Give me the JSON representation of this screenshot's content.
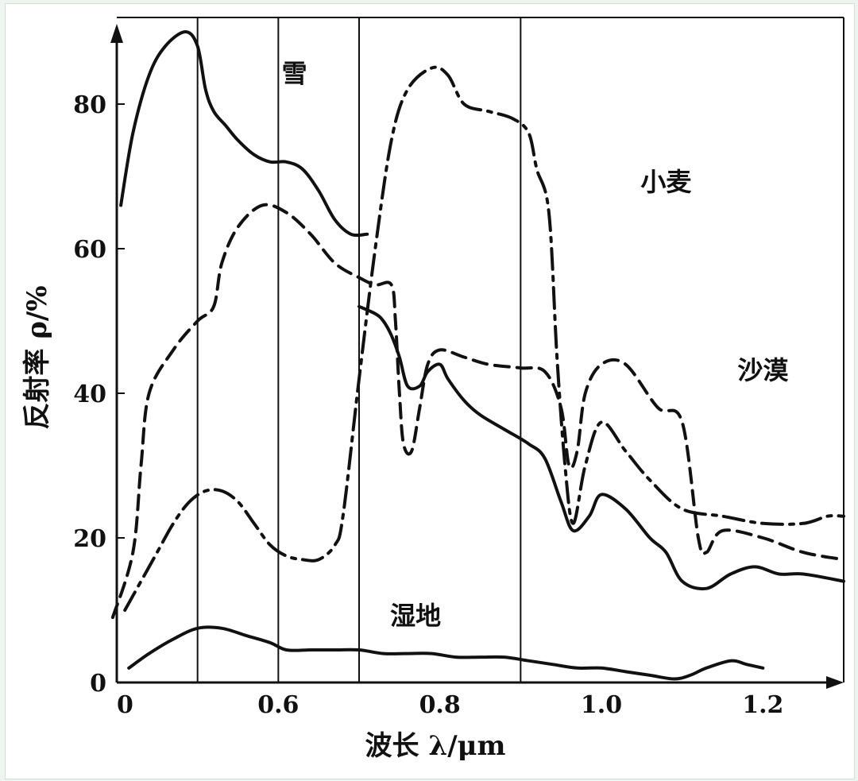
{
  "chart_data": {
    "type": "line",
    "xlabel": "波长 λ/μm",
    "ylabel": "反射率 ρ/%",
    "x_ticks": [
      "0",
      "0.6",
      "0.8",
      "1.0",
      "1.2"
    ],
    "y_ticks": [
      "0",
      "20",
      "40",
      "60",
      "80"
    ],
    "xlim": [
      0.4,
      1.3
    ],
    "ylim": [
      0,
      90
    ],
    "grid": "vertical lines at 0.5, 0.6, 0.7, 0.9",
    "legend": "inline labels",
    "series": [
      {
        "name": "雪",
        "style": "solid",
        "points": [
          [
            0.405,
            66
          ],
          [
            0.42,
            76
          ],
          [
            0.44,
            84
          ],
          [
            0.46,
            88
          ],
          [
            0.485,
            90
          ],
          [
            0.5,
            88
          ],
          [
            0.51,
            82
          ],
          [
            0.52,
            79
          ],
          [
            0.535,
            77
          ],
          [
            0.55,
            75
          ],
          [
            0.57,
            73
          ],
          [
            0.59,
            72
          ],
          [
            0.61,
            72
          ],
          [
            0.63,
            71
          ],
          [
            0.65,
            68
          ],
          [
            0.67,
            64
          ],
          [
            0.69,
            62
          ],
          [
            0.71,
            62
          ]
        ]
      },
      {
        "name": "小麦",
        "style": "dash-dot",
        "points": [
          [
            0.41,
            10
          ],
          [
            0.43,
            14
          ],
          [
            0.45,
            18
          ],
          [
            0.47,
            22
          ],
          [
            0.49,
            25
          ],
          [
            0.51,
            26.5
          ],
          [
            0.53,
            26.5
          ],
          [
            0.55,
            25
          ],
          [
            0.57,
            22
          ],
          [
            0.59,
            19
          ],
          [
            0.61,
            17.5
          ],
          [
            0.63,
            17
          ],
          [
            0.65,
            17
          ],
          [
            0.67,
            19
          ],
          [
            0.68,
            23
          ],
          [
            0.7,
            42
          ],
          [
            0.72,
            60
          ],
          [
            0.74,
            75
          ],
          [
            0.76,
            82
          ],
          [
            0.79,
            85
          ],
          [
            0.81,
            84
          ],
          [
            0.83,
            80
          ],
          [
            0.86,
            79
          ],
          [
            0.89,
            78
          ],
          [
            0.91,
            76
          ],
          [
            0.92,
            71
          ],
          [
            0.935,
            65
          ],
          [
            0.945,
            45
          ],
          [
            0.955,
            30
          ],
          [
            0.965,
            22
          ],
          [
            0.98,
            30
          ],
          [
            1.0,
            36
          ],
          [
            1.03,
            32
          ],
          [
            1.06,
            28
          ],
          [
            1.1,
            24
          ],
          [
            1.15,
            23
          ],
          [
            1.2,
            22
          ],
          [
            1.25,
            22
          ],
          [
            1.28,
            23
          ],
          [
            1.3,
            23
          ]
        ]
      },
      {
        "name": "沙漠",
        "style": "dashed",
        "points": [
          [
            0.395,
            9
          ],
          [
            0.42,
            18
          ],
          [
            0.43,
            30
          ],
          [
            0.44,
            40
          ],
          [
            0.47,
            46
          ],
          [
            0.5,
            50
          ],
          [
            0.52,
            52
          ],
          [
            0.53,
            58
          ],
          [
            0.55,
            63
          ],
          [
            0.58,
            66
          ],
          [
            0.61,
            65
          ],
          [
            0.64,
            62
          ],
          [
            0.67,
            58
          ],
          [
            0.7,
            56
          ],
          [
            0.72,
            55
          ],
          [
            0.74,
            55
          ],
          [
            0.745,
            50
          ],
          [
            0.75,
            40
          ],
          [
            0.755,
            33
          ],
          [
            0.765,
            32
          ],
          [
            0.775,
            38
          ],
          [
            0.785,
            44
          ],
          [
            0.8,
            46
          ],
          [
            0.83,
            45
          ],
          [
            0.86,
            44
          ],
          [
            0.9,
            43.5
          ],
          [
            0.93,
            43
          ],
          [
            0.95,
            38
          ],
          [
            0.96,
            30
          ],
          [
            0.97,
            32
          ],
          [
            0.98,
            40
          ],
          [
            1.0,
            44
          ],
          [
            1.03,
            44
          ],
          [
            1.07,
            38
          ],
          [
            1.1,
            36
          ],
          [
            1.12,
            20
          ],
          [
            1.13,
            18
          ],
          [
            1.15,
            21
          ],
          [
            1.2,
            20
          ],
          [
            1.25,
            18
          ],
          [
            1.3,
            17
          ]
        ]
      },
      {
        "name": "湿地",
        "style": "solid",
        "points": [
          [
            0.415,
            2
          ],
          [
            0.44,
            4
          ],
          [
            0.47,
            6
          ],
          [
            0.5,
            7.5
          ],
          [
            0.53,
            7.5
          ],
          [
            0.56,
            6.5
          ],
          [
            0.59,
            5.5
          ],
          [
            0.61,
            4.5
          ],
          [
            0.64,
            4.5
          ],
          [
            0.67,
            4.5
          ],
          [
            0.7,
            4.5
          ],
          [
            0.73,
            4
          ],
          [
            0.76,
            4
          ],
          [
            0.79,
            4
          ],
          [
            0.82,
            3.5
          ],
          [
            0.85,
            3.5
          ],
          [
            0.88,
            3.5
          ],
          [
            0.91,
            3
          ],
          [
            0.94,
            2.5
          ],
          [
            0.97,
            2
          ],
          [
            1.0,
            2
          ],
          [
            1.03,
            1.5
          ],
          [
            1.06,
            1
          ],
          [
            1.09,
            0.5
          ],
          [
            1.11,
            1
          ],
          [
            1.13,
            2
          ],
          [
            1.16,
            3
          ],
          [
            1.18,
            2.5
          ],
          [
            1.2,
            2
          ]
        ]
      },
      {
        "style": "solid",
        "points": [
          [
            0.7,
            52
          ],
          [
            0.72,
            51
          ],
          [
            0.73,
            50
          ],
          [
            0.74,
            48
          ],
          [
            0.75,
            45
          ],
          [
            0.76,
            41
          ],
          [
            0.775,
            41
          ],
          [
            0.785,
            43
          ],
          [
            0.8,
            44
          ],
          [
            0.81,
            42
          ],
          [
            0.83,
            39
          ],
          [
            0.85,
            37
          ],
          [
            0.88,
            35
          ],
          [
            0.91,
            33
          ],
          [
            0.93,
            31
          ],
          [
            0.95,
            25
          ],
          [
            0.965,
            21
          ],
          [
            0.985,
            23
          ],
          [
            1.0,
            26
          ],
          [
            1.03,
            24
          ],
          [
            1.06,
            20
          ],
          [
            1.08,
            18
          ],
          [
            1.1,
            14
          ],
          [
            1.13,
            13
          ],
          [
            1.16,
            15
          ],
          [
            1.19,
            16
          ],
          [
            1.22,
            15
          ],
          [
            1.25,
            15
          ],
          [
            1.3,
            14
          ]
        ]
      }
    ],
    "annotations": [
      {
        "text": "雪",
        "x": 0.62,
        "y": 83
      },
      {
        "text": "小麦",
        "x": 1.08,
        "y": 68
      },
      {
        "text": "沙漠",
        "x": 1.2,
        "y": 42
      },
      {
        "text": "湿地",
        "x": 0.77,
        "y": 8
      }
    ]
  }
}
